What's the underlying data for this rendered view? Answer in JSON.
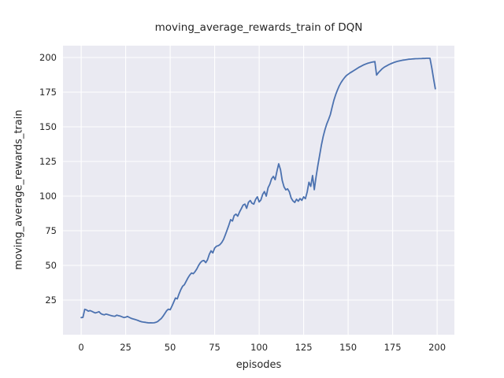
{
  "chart_data": {
    "type": "line",
    "title": "moving_average_rewards_train of DQN",
    "xlabel": "episodes",
    "ylabel": "moving_average_rewards_train",
    "x_ticks": [
      0,
      25,
      50,
      75,
      100,
      125,
      150,
      175,
      200
    ],
    "y_ticks": [
      25,
      50,
      75,
      100,
      125,
      150,
      175,
      200
    ],
    "xlim": [
      -10.2,
      209.7
    ],
    "ylim": [
      0,
      208.5
    ],
    "grid": true,
    "legend_position": "none",
    "colors": {
      "figure_background": "#ffffff",
      "axes_background": "#eaeaf2",
      "grid": "#ffffff",
      "text": "#262626",
      "line": "#4c72b0"
    },
    "series": [
      {
        "name": "moving_average_rewards_train",
        "color": "#4c72b0",
        "x_start": 0,
        "x_step": 1,
        "values": [
          12.3,
          12.5,
          18.3,
          17.9,
          17.0,
          17.4,
          16.9,
          16.2,
          15.7,
          16.1,
          16.6,
          15.3,
          14.6,
          14.3,
          14.9,
          14.5,
          14.1,
          13.7,
          13.4,
          13.3,
          14.1,
          13.7,
          13.4,
          12.9,
          12.4,
          12.6,
          13.2,
          12.5,
          11.9,
          11.4,
          11.1,
          10.7,
          10.2,
          9.7,
          9.3,
          9.1,
          8.9,
          8.7,
          8.5,
          8.6,
          8.5,
          8.6,
          8.9,
          9.5,
          10.6,
          11.7,
          13.3,
          15.3,
          17.2,
          18.4,
          18.0,
          20.5,
          23.5,
          26.5,
          25.8,
          29.5,
          32.5,
          35.0,
          36.0,
          38.5,
          41.0,
          43.0,
          44.5,
          44.0,
          45.5,
          47.5,
          50.0,
          52.0,
          53.2,
          53.5,
          52.0,
          54.0,
          58.0,
          60.5,
          59.0,
          62.5,
          63.8,
          64.2,
          65.0,
          66.5,
          68.8,
          72.0,
          75.5,
          79.0,
          83.0,
          82.0,
          86.0,
          87.0,
          85.5,
          88.5,
          91.0,
          93.5,
          94.2,
          91.2,
          95.5,
          96.8,
          94.8,
          94.2,
          97.5,
          99.5,
          95.8,
          97.2,
          101.3,
          103.2,
          100.0,
          106.0,
          108.5,
          112.5,
          114.2,
          111.8,
          118.0,
          123.3,
          119.0,
          111.2,
          106.6,
          104.5,
          105.2,
          103.0,
          98.6,
          96.5,
          95.4,
          97.7,
          96.3,
          98.2,
          96.9,
          99.4,
          98.1,
          103.0,
          110.0,
          107.0,
          114.8,
          104.6,
          114.0,
          122.0,
          129.5,
          137.0,
          143.0,
          148.0,
          152.0,
          155.2,
          158.8,
          164.0,
          169.2,
          173.2,
          176.5,
          179.5,
          181.8,
          183.8,
          185.5,
          186.9,
          187.9,
          188.8,
          189.6,
          190.4,
          191.2,
          192.0,
          192.8,
          193.5,
          194.2,
          194.8,
          195.3,
          195.8,
          196.2,
          196.5,
          196.8,
          197.0,
          187.3,
          189.0,
          190.4,
          191.7,
          192.7,
          193.5,
          194.2,
          194.9,
          195.5,
          196.0,
          196.5,
          196.9,
          197.3,
          197.6,
          197.9,
          198.1,
          198.3,
          198.5,
          198.7,
          198.8,
          198.9,
          199.0,
          199.1,
          199.1,
          199.2,
          199.2,
          199.3,
          199.3,
          199.4,
          199.4,
          199.4,
          192.5,
          184.5,
          177.4
        ]
      }
    ]
  }
}
